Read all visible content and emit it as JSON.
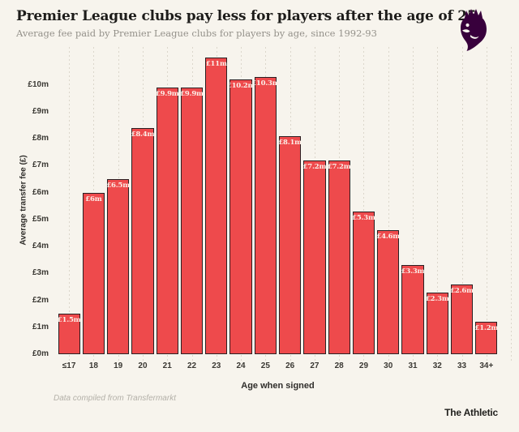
{
  "chart_data": {
    "type": "bar",
    "title": "Premier League clubs pay less for players after the age of 25",
    "subtitle": "Average fee paid by Premier League clubs for players by age, since 1992-93",
    "categories": [
      "≤17",
      "18",
      "19",
      "20",
      "21",
      "22",
      "23",
      "24",
      "25",
      "26",
      "27",
      "28",
      "29",
      "30",
      "31",
      "32",
      "33",
      "34+"
    ],
    "values": [
      1.5,
      6,
      6.5,
      8.4,
      9.9,
      9.9,
      11,
      10.2,
      10.3,
      8.1,
      7.2,
      7.2,
      5.3,
      4.6,
      3.3,
      2.3,
      2.6,
      1.2
    ],
    "bar_labels": [
      "£1.5m",
      "£6m",
      "£6.5m",
      "£8.4m",
      "£9.9m",
      "£9.9m",
      "£11m",
      "£10.2m",
      "£10.3m",
      "£8.1m",
      "£7.2m",
      "£7.2m",
      "£5.3m",
      "£4.6m",
      "£3.3m",
      "£2.3m",
      "£2.6m",
      "£1.2m"
    ],
    "xlabel": "Age when signed",
    "ylabel": "Average transfer fee (£)",
    "y_ticks": [
      "£0m",
      "£1m",
      "£2m",
      "£3m",
      "£4m",
      "£5m",
      "£6m",
      "£7m",
      "£8m",
      "£9m",
      "£10m"
    ],
    "ylim": [
      0,
      11.4
    ],
    "grid": "vertical-dotted",
    "legend": "none",
    "colors": {
      "background": "#f7f4ed",
      "bar_fill": "#ee4a4c",
      "bar_border": "#2a2023",
      "bar_label_text": "#fcefe8",
      "gridline": "#dbd6cb"
    }
  },
  "logo": {
    "label": "premier-league-crest",
    "color": "#38003c"
  },
  "footer": {
    "source_note": "Data compiled from Transfermarkt",
    "brand": "The Athletic"
  }
}
